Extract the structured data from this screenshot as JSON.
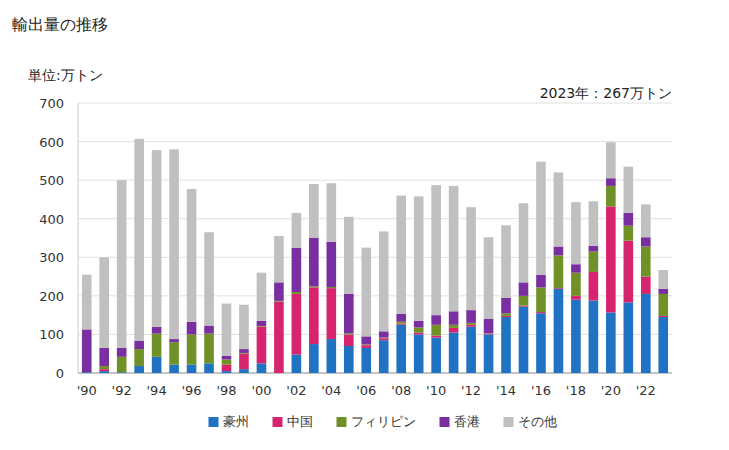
{
  "chart_data": {
    "type": "bar",
    "title": "輸出量の推移",
    "y_label": "単位:万トン",
    "annotation": "2023年：267万トン",
    "stacked": true,
    "grid": true,
    "legend": "bottom",
    "categories": [
      "'90",
      null,
      "'92",
      null,
      "'94",
      null,
      "'96",
      null,
      "'98",
      null,
      "'00",
      null,
      "'02",
      null,
      "'04",
      null,
      "'06",
      null,
      "'08",
      null,
      "'10",
      null,
      "'12",
      null,
      "'14",
      null,
      "'16",
      null,
      "'18",
      null,
      "'20",
      null,
      "'22",
      null
    ],
    "ylim": [
      0,
      700
    ],
    "yticks": [
      0,
      100,
      200,
      300,
      400,
      500,
      600,
      700
    ],
    "series": [
      {
        "name": "豪州",
        "color": "#1f73c2",
        "values": [
          2,
          5,
          2,
          18,
          42,
          22,
          22,
          25,
          5,
          10,
          25,
          0,
          48,
          75,
          88,
          70,
          65,
          85,
          125,
          100,
          92,
          105,
          120,
          100,
          145,
          172,
          155,
          218,
          190,
          188,
          157,
          183,
          205,
          145
        ]
      },
      {
        "name": "中国",
        "color": "#d6246e",
        "values": [
          0,
          5,
          0,
          0,
          0,
          0,
          0,
          0,
          17,
          40,
          95,
          185,
          157,
          147,
          132,
          30,
          7,
          5,
          3,
          5,
          5,
          12,
          5,
          2,
          3,
          3,
          3,
          2,
          10,
          74,
          275,
          160,
          45,
          3
        ]
      },
      {
        "name": "フィリピン",
        "color": "#6f9128",
        "values": [
          0,
          8,
          40,
          44,
          60,
          58,
          78,
          77,
          13,
          2,
          2,
          2,
          5,
          3,
          3,
          3,
          2,
          2,
          5,
          13,
          28,
          8,
          5,
          1,
          7,
          25,
          64,
          85,
          60,
          53,
          53,
          39,
          78,
          57
        ]
      },
      {
        "name": "香港",
        "color": "#7a2fa0",
        "values": [
          111,
          47,
          23,
          21,
          18,
          8,
          33,
          21,
          10,
          10,
          13,
          48,
          115,
          125,
          117,
          102,
          21,
          16,
          20,
          17,
          25,
          35,
          33,
          37,
          40,
          35,
          33,
          23,
          22,
          15,
          20,
          33,
          24,
          13
        ]
      },
      {
        "name": "その他",
        "color": "#c0c0c0",
        "values": [
          142,
          235,
          435,
          524,
          458,
          492,
          344,
          242,
          135,
          115,
          125,
          120,
          90,
          140,
          152,
          200,
          230,
          259,
          307,
          323,
          337,
          325,
          267,
          212,
          188,
          205,
          293,
          192,
          161,
          115,
          93,
          120,
          85,
          49
        ]
      }
    ]
  }
}
